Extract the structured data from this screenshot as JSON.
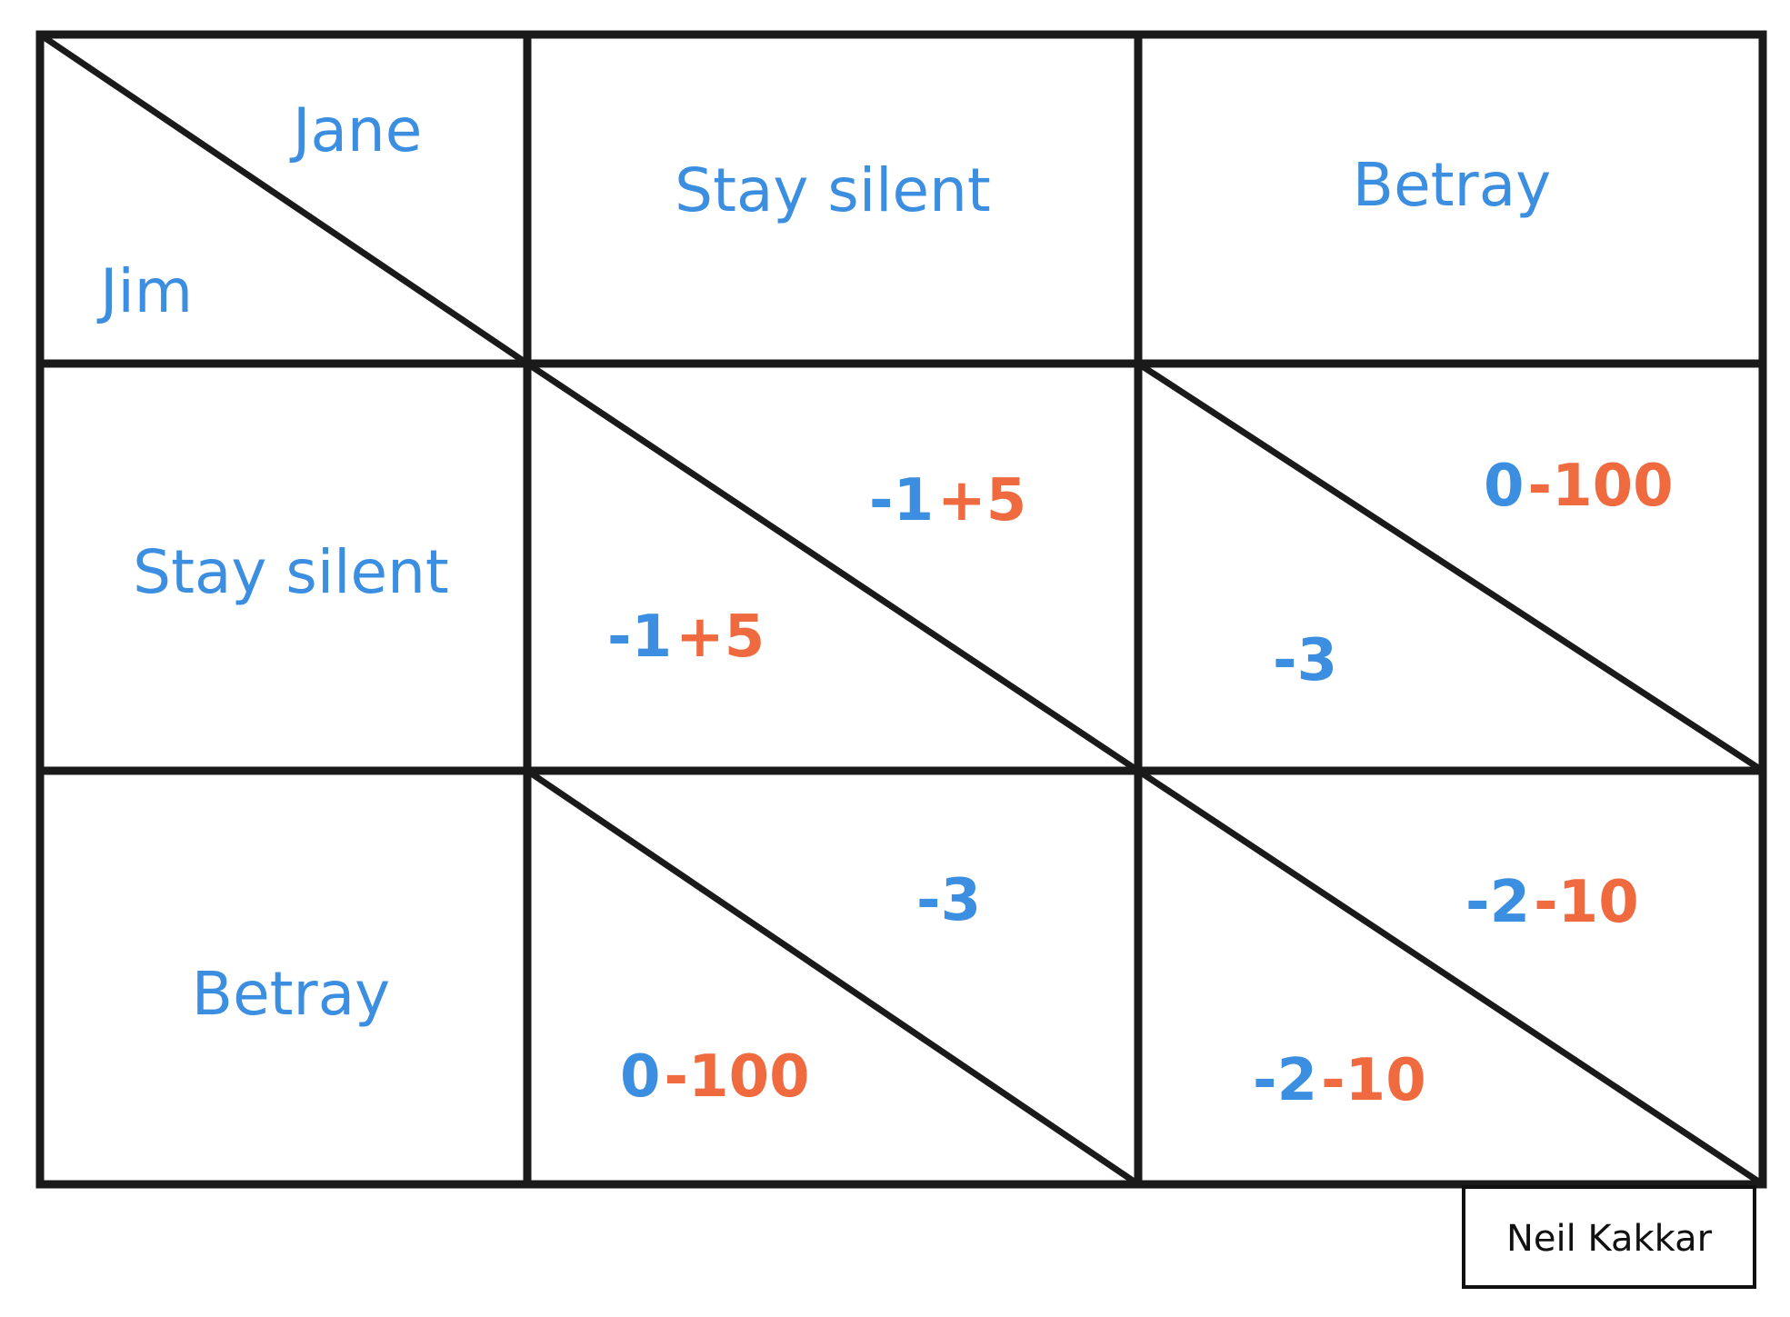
{
  "players": {
    "column_player": "Jane",
    "row_player": "Jim"
  },
  "column_headers": [
    "Stay silent",
    "Betray"
  ],
  "row_headers": [
    "Stay silent",
    "Betray"
  ],
  "cells": [
    {
      "row": "Stay silent",
      "col": "Stay silent",
      "upper": {
        "blue": "-1",
        "red": "+5"
      },
      "lower": {
        "blue": "-1",
        "red": "+5"
      }
    },
    {
      "row": "Stay silent",
      "col": "Betray",
      "upper": {
        "blue": "0",
        "red": "-100"
      },
      "lower": {
        "blue": "-3",
        "red": ""
      }
    },
    {
      "row": "Betray",
      "col": "Stay silent",
      "upper": {
        "blue": "-3",
        "red": ""
      },
      "lower": {
        "blue": "0",
        "red": "-100"
      }
    },
    {
      "row": "Betray",
      "col": "Betray",
      "upper": {
        "blue": "-2",
        "red": "-10"
      },
      "lower": {
        "blue": "-2",
        "red": "-10"
      }
    }
  ],
  "credit": "Neil Kakkar",
  "colors": {
    "blue": "#3b8ee0",
    "red": "#ef6a3f",
    "ink": "#1a1a1a"
  }
}
